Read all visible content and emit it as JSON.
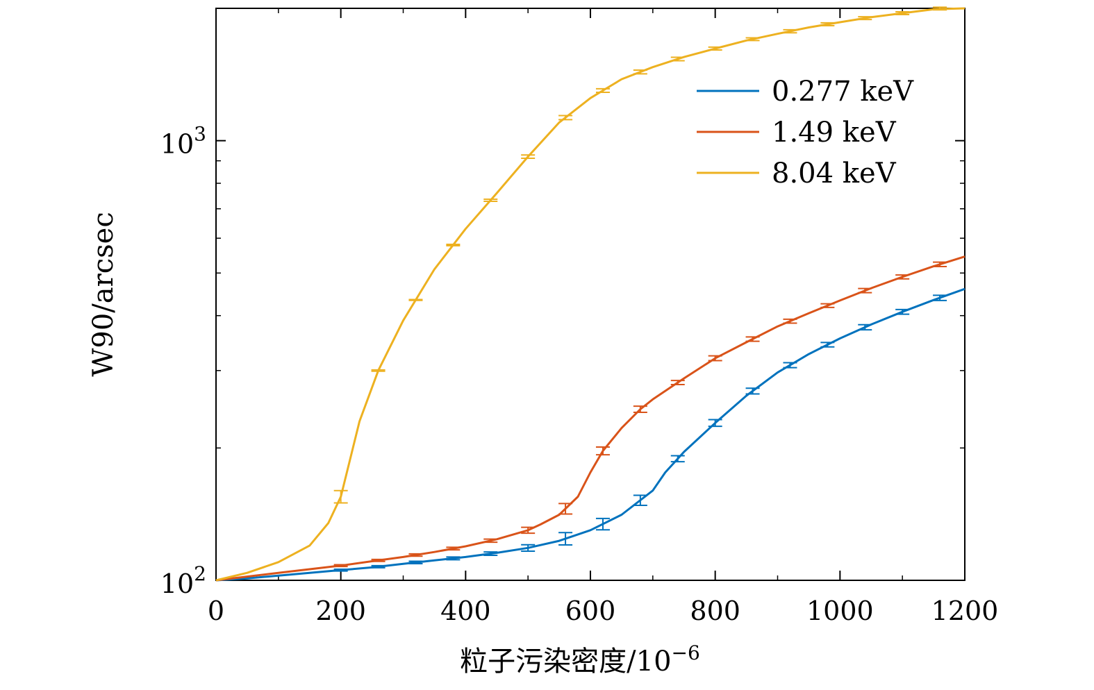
{
  "chart_data": {
    "type": "line",
    "title": "",
    "xlabel": "粒子污染密度/10",
    "xlabel_exponent": "−6",
    "ylabel": "W90/arcsec",
    "xlim": [
      0,
      1200
    ],
    "ylim": [
      100,
      2000
    ],
    "yscale": "log",
    "x_ticks": [
      0,
      200,
      400,
      600,
      800,
      1000,
      1200
    ],
    "x_tick_labels": [
      "0",
      "200",
      "400",
      "600",
      "800",
      "1000",
      "1200"
    ],
    "y_ticks": [
      100,
      1000
    ],
    "y_tick_labels": [
      {
        "base": "10",
        "exp": "2"
      },
      {
        "base": "10",
        "exp": "3"
      }
    ],
    "legend_position": "top-right",
    "error_bar_x": [
      200,
      260,
      320,
      380,
      440,
      500,
      560,
      620,
      680,
      740,
      800,
      860,
      920,
      980,
      1040,
      1100,
      1160
    ],
    "series": [
      {
        "name": "0.277 keV",
        "color": "#0072BD",
        "x": [
          0,
          50,
          100,
          150,
          200,
          250,
          300,
          350,
          400,
          450,
          500,
          550,
          600,
          650,
          700,
          720,
          750,
          800,
          850,
          900,
          950,
          1000,
          1050,
          1100,
          1150,
          1200
        ],
        "y": [
          100,
          101,
          102.5,
          104,
          105.5,
          107,
          109,
          111,
          113,
          115.5,
          118.5,
          123,
          130,
          141,
          160,
          176,
          196,
          228,
          263,
          297,
          327,
          355,
          382,
          408,
          434,
          460
        ],
        "error_bars": [
          0.5,
          0.6,
          0.7,
          0.8,
          1,
          2,
          4,
          4,
          4,
          3,
          4,
          4,
          4,
          4,
          5,
          5,
          6
        ]
      },
      {
        "name": "1.49 keV",
        "color": "#D95319",
        "x": [
          0,
          50,
          100,
          150,
          200,
          250,
          300,
          350,
          400,
          450,
          500,
          520,
          550,
          580,
          600,
          620,
          650,
          680,
          700,
          750,
          800,
          850,
          900,
          950,
          1000,
          1050,
          1100,
          1150,
          1200
        ],
        "y": [
          100,
          102,
          104,
          106,
          108,
          110.5,
          113,
          116,
          119.5,
          124,
          130,
          134,
          141,
          155,
          176,
          197,
          222,
          245,
          258,
          288,
          320,
          348,
          378,
          405,
          433,
          462,
          490,
          518,
          545
        ],
        "error_bars": [
          0.5,
          0.6,
          0.7,
          0.8,
          1,
          2,
          4,
          4,
          4,
          3,
          4,
          4,
          4,
          4,
          5,
          5,
          6
        ]
      },
      {
        "name": "8.04 keV",
        "color": "#EDB120",
        "x": [
          0,
          50,
          100,
          150,
          180,
          200,
          230,
          260,
          300,
          350,
          400,
          450,
          500,
          550,
          600,
          650,
          700,
          750,
          800,
          850,
          900,
          950,
          1000,
          1050,
          1100,
          1150,
          1200
        ],
        "y": [
          100,
          104,
          110,
          120,
          135,
          155,
          230,
          300,
          390,
          510,
          630,
          760,
          920,
          1100,
          1250,
          1380,
          1470,
          1550,
          1620,
          1690,
          1750,
          1810,
          1860,
          1910,
          1950,
          1990,
          2030
        ],
        "error_bars": [
          5,
          1,
          1,
          2,
          4,
          8,
          12,
          12,
          14,
          14,
          12,
          12,
          14,
          14,
          14,
          14,
          14
        ]
      }
    ]
  }
}
